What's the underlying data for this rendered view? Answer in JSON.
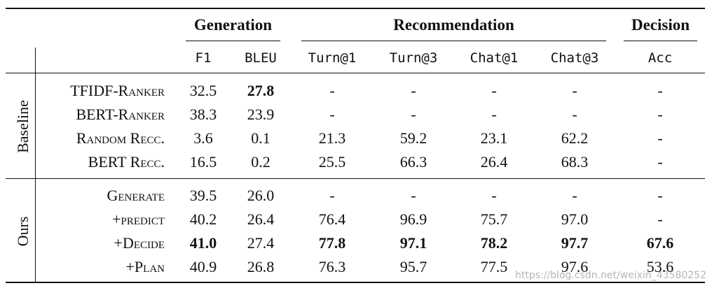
{
  "header": {
    "groups": [
      {
        "label": "Generation",
        "span": 2
      },
      {
        "label": "Recommendation",
        "span": 4
      },
      {
        "label": "Decision",
        "span": 1
      }
    ],
    "columns": [
      "F1",
      "BLEU",
      "Turn@1",
      "Turn@3",
      "Chat@1",
      "Chat@3",
      "Acc"
    ]
  },
  "sections": [
    {
      "label": "Baseline",
      "rows": [
        {
          "name": "TFIDF-Ranker",
          "cells": [
            "32.5",
            "27.8",
            "-",
            "-",
            "-",
            "-",
            "-"
          ],
          "bold": [
            1
          ]
        },
        {
          "name": "BERT-Ranker",
          "cells": [
            "38.3",
            "23.9",
            "-",
            "-",
            "-",
            "-",
            "-"
          ],
          "bold": []
        },
        {
          "name": "Random Recc.",
          "cells": [
            "3.6",
            "0.1",
            "21.3",
            "59.2",
            "23.1",
            "62.2",
            "-"
          ],
          "bold": []
        },
        {
          "name": "BERT Recc.",
          "cells": [
            "16.5",
            "0.2",
            "25.5",
            "66.3",
            "26.4",
            "68.3",
            "-"
          ],
          "bold": []
        }
      ]
    },
    {
      "label": "Ours",
      "rows": [
        {
          "name": "Generate",
          "cells": [
            "39.5",
            "26.0",
            "-",
            "-",
            "-",
            "-",
            "-"
          ],
          "bold": []
        },
        {
          "name": "+predict",
          "cells": [
            "40.2",
            "26.4",
            "76.4",
            "96.9",
            "75.7",
            "97.0",
            "-"
          ],
          "bold": []
        },
        {
          "name": "+Decide",
          "cells": [
            "41.0",
            "27.4",
            "77.8",
            "97.1",
            "78.2",
            "97.7",
            "67.6"
          ],
          "bold": [
            0,
            2,
            3,
            4,
            5,
            6
          ]
        },
        {
          "name": "+Plan",
          "cells": [
            "40.9",
            "26.8",
            "76.3",
            "95.7",
            "77.5",
            "97.6",
            "53.6"
          ],
          "bold": []
        }
      ]
    }
  ],
  "watermark": "https://blog.csdn.net/weixin_43580252"
}
